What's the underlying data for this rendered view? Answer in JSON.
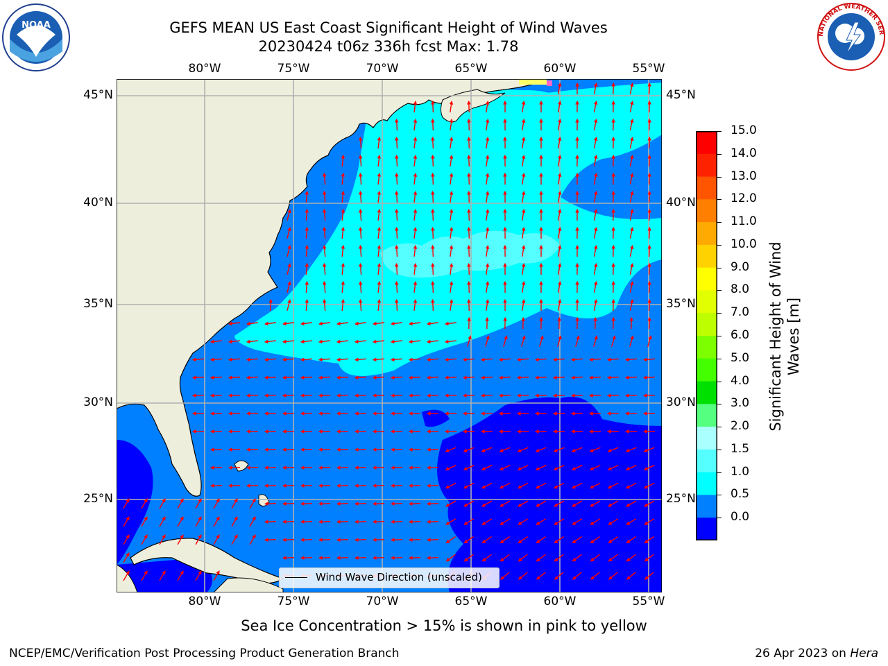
{
  "title_line1": "GEFS MEAN US East Coast Significant Height of Wind Waves",
  "title_line2": "20230424 t06z 336h fcst   Max: 1.78",
  "lon_labels": [
    "80°W",
    "75°W",
    "70°W",
    "65°W",
    "60°W",
    "55°W"
  ],
  "lat_labels": [
    "45°N",
    "40°N",
    "35°N",
    "30°N",
    "25°N"
  ],
  "legend_label": "Wind Wave Direction (unscaled)",
  "colorbar": {
    "label_line1": "Significant Height of Wind",
    "label_line2": "Waves [m]",
    "ticks": [
      "15.0",
      "14.0",
      "13.0",
      "12.0",
      "11.0",
      "10.0",
      "9.0",
      "8.0",
      "7.0",
      "6.0",
      "5.0",
      "4.0",
      "3.0",
      "2.0",
      "1.5",
      "1.0",
      "0.5",
      "0.0"
    ],
    "colors_top_to_bottom": [
      "#ff0000",
      "#ff2200",
      "#ff5500",
      "#ff8000",
      "#ffaa00",
      "#ffd200",
      "#ffff00",
      "#e1ff00",
      "#bdff00",
      "#7dff00",
      "#44ff00",
      "#00e000",
      "#55ff80",
      "#aaffff",
      "#55ffff",
      "#00ffff",
      "#0080ff",
      "#0000ff"
    ]
  },
  "sea_ice_note": "Sea Ice Concentration > 15% is shown in pink to yellow",
  "footer_left": "NCEP/EMC/Verification Post Processing Product Generation Branch",
  "footer_date": "26 Apr 2023 on ",
  "footer_host": "Hera",
  "logo_left_text": "NOAA",
  "logo_right_text": "NATIONAL WEATHER SERVICE",
  "colors": {
    "land": "#eeeedd",
    "sea_0_05": "#0000ff",
    "sea_05_1": "#0080ff",
    "sea_1_15": "#00ffff",
    "sea_15_2": "#55ffff",
    "arrow": "#ff0000",
    "grid": "#b0b0b0"
  }
}
